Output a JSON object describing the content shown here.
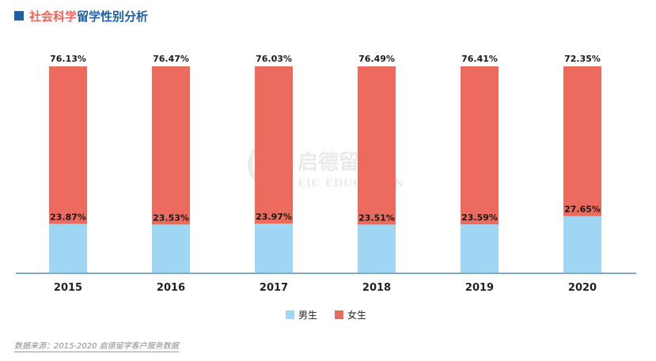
{
  "title": {
    "part1": "社会科学",
    "part2": "留学性别分析"
  },
  "colors": {
    "male": "#9fd6f4",
    "female": "#ec6b5e",
    "title_red": "#e8675a",
    "title_blue": "#1f5fa6",
    "axis": "#7fa9c9"
  },
  "legend": {
    "male": "男生",
    "female": "女生"
  },
  "watermark": {
    "cn": "启德留学",
    "en": "EIC EDUCATION"
  },
  "source": "数据来源：2015-2020 启德留学客户服务数据",
  "chart_data": {
    "type": "bar",
    "stacked": true,
    "categories": [
      "2015",
      "2016",
      "2017",
      "2018",
      "2019",
      "2020"
    ],
    "series": [
      {
        "name": "男生",
        "values": [
          23.87,
          23.53,
          23.97,
          23.51,
          23.59,
          27.65
        ],
        "labels": [
          "23.87%",
          "23.53%",
          "23.97%",
          "23.51%",
          "23.59%",
          "27.65%"
        ]
      },
      {
        "name": "女生",
        "values": [
          76.13,
          76.47,
          76.03,
          76.49,
          76.41,
          72.35
        ],
        "labels": [
          "76.13%",
          "76.47%",
          "76.03%",
          "76.49%",
          "76.41%",
          "72.35%"
        ]
      }
    ],
    "ylim": [
      0,
      100
    ],
    "legend_position": "bottom-center",
    "grid": false
  }
}
